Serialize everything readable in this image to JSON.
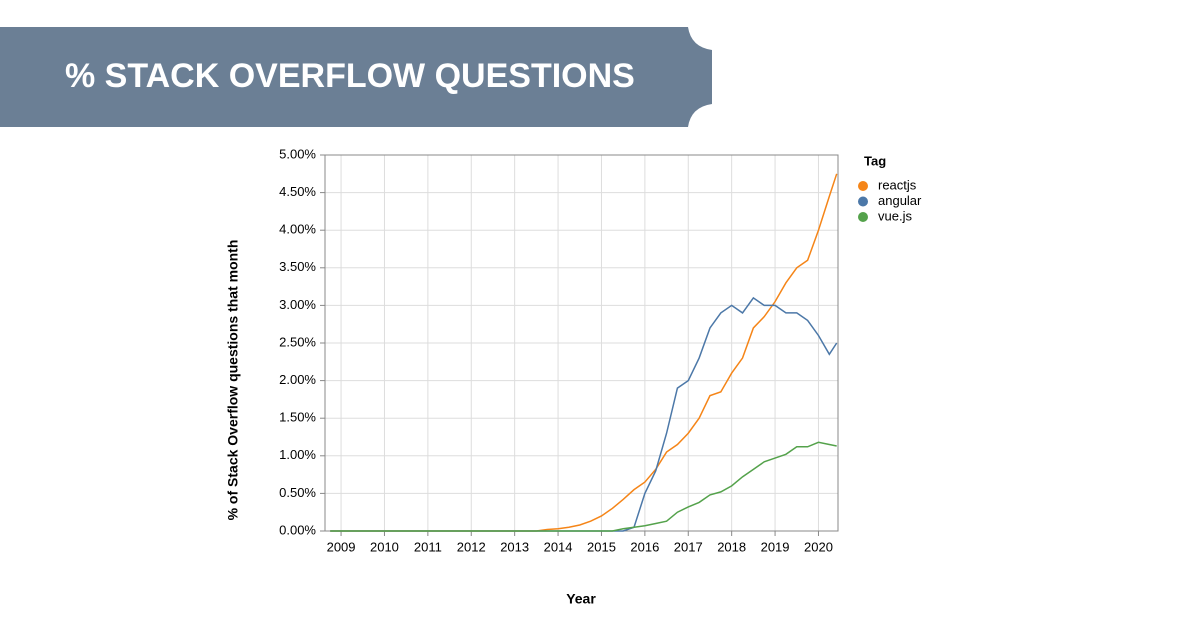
{
  "chart_data": {
    "type": "line",
    "title": "% STACK OVERFLOW QUESTIONS",
    "x_label": "Year",
    "y_label": "% of Stack Overflow questions that month",
    "legend_title": "Tag",
    "legend_position": "right",
    "grid": true,
    "xlim": [
      2008.63,
      2020.45
    ],
    "xticks": [
      2009,
      2010,
      2011,
      2012,
      2013,
      2014,
      2015,
      2016,
      2017,
      2018,
      2019,
      2020
    ],
    "ylim": [
      0,
      5
    ],
    "yticks": [
      {
        "value": 0,
        "label": "0.00%"
      },
      {
        "value": 0.5,
        "label": "0.50%"
      },
      {
        "value": 1,
        "label": "1.00%"
      },
      {
        "value": 1.5,
        "label": "1.50%"
      },
      {
        "value": 2,
        "label": "2.00%"
      },
      {
        "value": 2.5,
        "label": "2.50%"
      },
      {
        "value": 3,
        "label": "3.00%"
      },
      {
        "value": 3.5,
        "label": "3.50%"
      },
      {
        "value": 4,
        "label": "4.00%"
      },
      {
        "value": 4.5,
        "label": "4.50%"
      },
      {
        "value": 5,
        "label": "5.00%"
      }
    ],
    "x": [
      2008.75,
      2009,
      2009.25,
      2009.5,
      2009.75,
      2010,
      2010.25,
      2010.5,
      2010.75,
      2011,
      2011.25,
      2011.5,
      2011.75,
      2012,
      2012.25,
      2012.5,
      2012.75,
      2013,
      2013.25,
      2013.5,
      2013.75,
      2014,
      2014.25,
      2014.5,
      2014.75,
      2015,
      2015.25,
      2015.5,
      2015.75,
      2016,
      2016.25,
      2016.5,
      2016.75,
      2017,
      2017.25,
      2017.5,
      2017.75,
      2018,
      2018.25,
      2018.5,
      2018.75,
      2019,
      2019.25,
      2019.5,
      2019.75,
      2020,
      2020.25,
      2020.42
    ],
    "series": [
      {
        "name": "reactjs",
        "color": "#f58518",
        "values": [
          0,
          0,
          0,
          0,
          0,
          0,
          0,
          0,
          0,
          0,
          0,
          0,
          0,
          0,
          0,
          0,
          0,
          0,
          0,
          0,
          0.02,
          0.03,
          0.05,
          0.08,
          0.13,
          0.2,
          0.3,
          0.42,
          0.55,
          0.65,
          0.82,
          1.05,
          1.15,
          1.3,
          1.5,
          1.8,
          1.85,
          2.1,
          2.3,
          2.7,
          2.85,
          3.05,
          3.3,
          3.5,
          3.6,
          4.0,
          4.45,
          4.75
        ]
      },
      {
        "name": "angular",
        "color": "#4c78a8",
        "values": [
          0,
          0,
          0,
          0,
          0,
          0,
          0,
          0,
          0,
          0,
          0,
          0,
          0,
          0,
          0,
          0,
          0,
          0,
          0,
          0,
          0,
          0,
          0,
          0,
          0,
          0,
          0,
          0,
          0.05,
          0.5,
          0.8,
          1.3,
          1.9,
          2.0,
          2.3,
          2.7,
          2.9,
          3.0,
          2.9,
          3.1,
          3.0,
          3.0,
          2.9,
          2.9,
          2.8,
          2.6,
          2.35,
          2.5
        ]
      },
      {
        "name": "vue.js",
        "color": "#54a24b",
        "values": [
          0,
          0,
          0,
          0,
          0,
          0,
          0,
          0,
          0,
          0,
          0,
          0,
          0,
          0,
          0,
          0,
          0,
          0,
          0,
          0,
          0,
          0,
          0,
          0,
          0,
          0,
          0,
          0.03,
          0.05,
          0.07,
          0.1,
          0.13,
          0.25,
          0.32,
          0.38,
          0.48,
          0.52,
          0.6,
          0.72,
          0.82,
          0.92,
          0.97,
          1.02,
          1.12,
          1.12,
          1.18,
          1.15,
          1.13
        ]
      }
    ]
  }
}
